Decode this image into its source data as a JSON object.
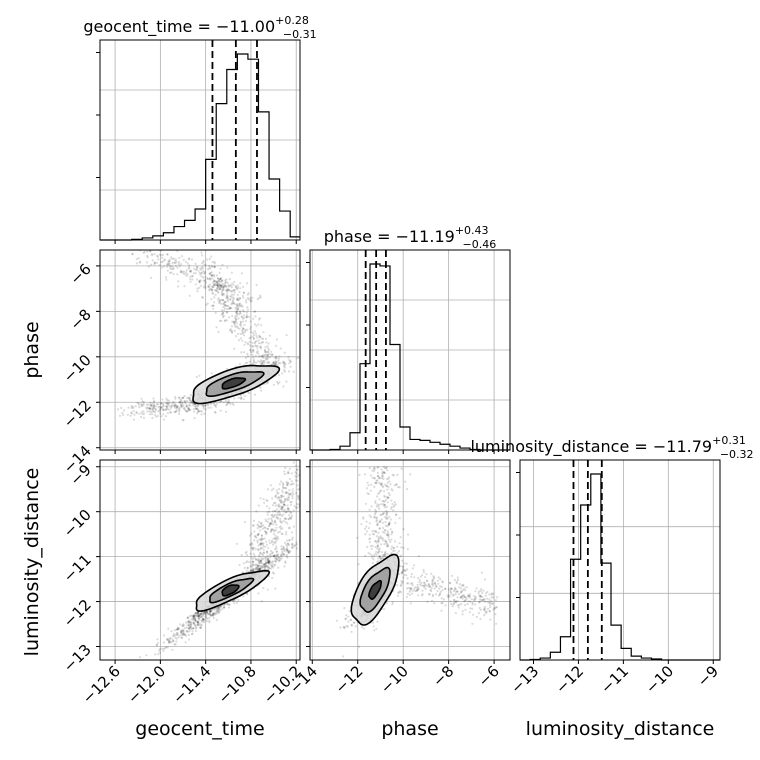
{
  "chart_data": {
    "type": "corner",
    "parameters": [
      "geocent_time",
      "phase",
      "luminosity_distance"
    ],
    "axis_labels": {
      "geocent_time": "geocent_time",
      "phase": "phase",
      "luminosity_distance": "luminosity_distance"
    },
    "ranges": {
      "geocent_time": [
        -12.8,
        -10.15
      ],
      "phase": [
        -14.1,
        -5.3
      ],
      "luminosity_distance": [
        -13.3,
        -8.85
      ]
    },
    "ticks": {
      "geocent_time": [
        -12.6,
        -12.0,
        -11.4,
        -10.8,
        -10.2
      ],
      "phase": [
        -14,
        -12,
        -10,
        -8,
        -6
      ],
      "luminosity_distance": [
        -13,
        -12,
        -11,
        -10,
        -9
      ]
    },
    "tick_labels": {
      "geocent_time": [
        "−12.6",
        "−12.0",
        "−11.4",
        "−10.8",
        "−10.2"
      ],
      "phase": [
        "−14",
        "−12",
        "−10",
        "−8",
        "−6"
      ],
      "luminosity_distance": [
        "−13",
        "−12",
        "−11",
        "−10",
        "−9"
      ]
    },
    "diagonal_titles": [
      {
        "name": "geocent_time",
        "median": "−11.00",
        "plus": "+0.28",
        "minus": "−0.31"
      },
      {
        "name": "phase",
        "median": "−11.19",
        "plus": "+0.43",
        "minus": "−0.46"
      },
      {
        "name": "luminosity_distance",
        "median": "−11.79",
        "plus": "+0.31",
        "minus": "−0.32"
      }
    ],
    "quantiles": {
      "geocent_time": [
        -11.31,
        -11.0,
        -10.72
      ],
      "phase": [
        -11.65,
        -11.19,
        -10.76
      ],
      "luminosity_distance": [
        -12.11,
        -11.79,
        -11.48
      ]
    },
    "histograms": {
      "geocent_time": {
        "edges": [
          -12.8,
          -12.66,
          -12.52,
          -12.38,
          -12.24,
          -12.1,
          -11.96,
          -11.82,
          -11.68,
          -11.54,
          -11.4,
          -11.26,
          -11.12,
          -10.98,
          -10.84,
          -10.7,
          -10.56,
          -10.42,
          -10.28,
          -10.15
        ],
        "counts": [
          0.0,
          0.0,
          0.0,
          0.003,
          0.01,
          0.02,
          0.035,
          0.065,
          0.095,
          0.15,
          0.39,
          0.66,
          0.825,
          0.9,
          0.875,
          0.62,
          0.295,
          0.14,
          0.015
        ]
      },
      "phase": {
        "edges": [
          -14.1,
          -13.66,
          -13.22,
          -12.78,
          -12.34,
          -11.9,
          -11.46,
          -11.02,
          -10.58,
          -10.14,
          -9.7,
          -9.26,
          -8.82,
          -8.38,
          -7.94,
          -7.5,
          -7.06,
          -6.62,
          -6.18,
          -5.74,
          -5.3
        ],
        "counts": [
          0.0,
          0.0,
          0.003,
          0.02,
          0.09,
          0.45,
          0.97,
          0.96,
          0.55,
          0.12,
          0.055,
          0.05,
          0.04,
          0.03,
          0.02,
          0.01,
          0.003,
          0.0,
          0.0,
          0.0
        ]
      },
      "luminosity_distance": {
        "edges": [
          -13.3,
          -13.075,
          -12.85,
          -12.625,
          -12.4,
          -12.175,
          -11.95,
          -11.725,
          -11.5,
          -11.275,
          -11.05,
          -10.825,
          -10.6,
          -10.375,
          -10.15,
          -9.925,
          -9.7,
          -9.475,
          -9.25,
          -9.025,
          -8.85
        ],
        "counts": [
          0.0,
          0.003,
          0.01,
          0.04,
          0.12,
          0.52,
          0.8,
          0.96,
          0.5,
          0.18,
          0.06,
          0.02,
          0.01,
          0.005,
          0.0,
          0.0,
          0.0,
          0.0,
          0.0,
          0.0
        ]
      }
    },
    "pairs": [
      {
        "x": "geocent_time",
        "y": "phase"
      },
      {
        "x": "geocent_time",
        "y": "luminosity_distance"
      },
      {
        "x": "phase",
        "y": "luminosity_distance"
      }
    ],
    "grid": true,
    "colors": {
      "hist": "#000000",
      "points": "#000000",
      "fill_outer": "#d9d9d9",
      "fill_mid": "#999999",
      "fill_inner": "#333333",
      "grid": "#b0b0b0"
    }
  }
}
